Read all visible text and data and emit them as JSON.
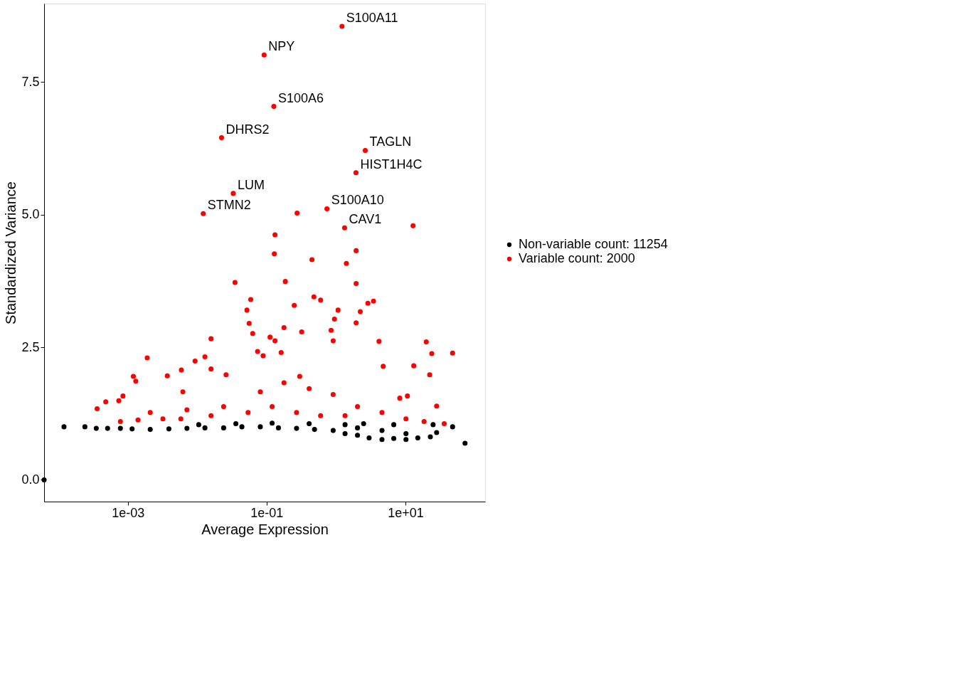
{
  "chart_data": {
    "type": "scatter",
    "xlabel": "Average Expression",
    "ylabel": "Standardized Variance",
    "log": "x",
    "grid": false,
    "legend": "right",
    "marker": "circle",
    "xlim": [
      6.2e-05,
      141
    ],
    "ylim": [
      -0.41,
      8.98
    ],
    "xticks": [
      {
        "value": 0.001,
        "label": "1e-03"
      },
      {
        "value": 0.1,
        "label": "1e-01"
      },
      {
        "value": 10,
        "label": "1e+01"
      }
    ],
    "yticks": [
      {
        "value": 0,
        "label": "0.0"
      },
      2.5,
      {
        "value": 5,
        "label": "5.0"
      },
      7.5
    ],
    "series": [
      {
        "name": "Non-variable count: 11254",
        "color": "#000000",
        "x": [
          6.2e-05,
          0.00012,
          0.00024,
          0.00035,
          0.00051,
          0.00078,
          0.00115,
          0.0021,
          0.0039,
          0.0071,
          0.0129,
          0.024,
          0.044,
          0.081,
          0.148,
          0.27,
          0.49,
          0.91,
          1.35,
          2.04,
          3.0,
          4.6,
          6.8,
          10.2,
          15.1,
          22.9,
          28.2,
          25.1,
          6.8,
          2.5,
          1.35,
          0.41,
          0.12,
          0.036,
          0.0105,
          47.9,
          72.4,
          4.6,
          10.2,
          2.04
        ],
        "values": [
          0,
          1.0,
          1.0,
          0.97,
          0.97,
          0.97,
          0.96,
          0.95,
          0.96,
          0.97,
          0.98,
          0.98,
          1.0,
          1.0,
          0.98,
          0.97,
          0.95,
          0.93,
          0.87,
          0.84,
          0.79,
          0.76,
          0.78,
          0.76,
          0.79,
          0.81,
          0.89,
          1.04,
          1.04,
          1.06,
          1.04,
          1.06,
          1.07,
          1.06,
          1.04,
          1.0,
          0.69,
          0.93,
          0.87,
          0.98
        ]
      },
      {
        "name": "Variable count: 2000",
        "color": "#ff0000",
        "x": [
          1.22,
          0.092,
          0.127,
          0.0224,
          2.64,
          1.94,
          0.033,
          0.74,
          0.0122,
          1.33,
          0.275,
          0.00036,
          0.00048,
          0.00074,
          0.00085,
          0.0012,
          0.0013,
          0.0019,
          0.0037,
          0.0059,
          0.0093,
          0.0129,
          0.0158,
          0.0158,
          0.026,
          0.035,
          0.052,
          0.059,
          0.056,
          0.063,
          0.074,
          0.112,
          0.132,
          0.132,
          0.129,
          0.186,
          0.178,
          0.25,
          0.32,
          0.45,
          0.48,
          0.6,
          0.95,
          1.07,
          0.85,
          0.91,
          1.41,
          1.95,
          1.95,
          1.95,
          2.24,
          2.88,
          3.47,
          4.17,
          4.79,
          12.9,
          20,
          24,
          22.4,
          13.2,
          47.9,
          28.2,
          10.7,
          8.3,
          0.3,
          0.162,
          0.089,
          0.0062,
          0.0021,
          0.0032,
          0.0071,
          0.024,
          0.081,
          0.178,
          0.41,
          0.91,
          2.04,
          4.6,
          10.2,
          18.6,
          36.3,
          0.054,
          0.12,
          0.27,
          0.6,
          1.35,
          0.00078,
          0.0014,
          0.0058,
          0.0158
        ],
        "values": [
          8.55,
          8.01,
          7.04,
          6.45,
          6.21,
          5.79,
          5.4,
          5.11,
          5.02,
          4.75,
          5.03,
          1.34,
          1.47,
          1.49,
          1.58,
          1.95,
          1.86,
          2.3,
          1.96,
          2.07,
          2.24,
          2.32,
          2.66,
          2.09,
          1.98,
          3.72,
          3.2,
          3.4,
          2.95,
          2.76,
          2.42,
          2.69,
          2.62,
          4.62,
          4.26,
          3.74,
          2.87,
          3.29,
          2.79,
          4.15,
          3.45,
          3.39,
          3.03,
          3.2,
          2.82,
          2.62,
          4.08,
          4.32,
          3.7,
          2.96,
          3.17,
          3.33,
          3.37,
          2.61,
          2.14,
          4.79,
          2.6,
          2.38,
          1.98,
          2.15,
          2.39,
          1.39,
          1.58,
          1.54,
          1.95,
          2.4,
          2.34,
          1.66,
          1.27,
          1.15,
          1.32,
          1.38,
          1.66,
          1.83,
          1.72,
          1.61,
          1.38,
          1.27,
          1.15,
          1.1,
          1.06,
          1.27,
          1.38,
          1.27,
          1.21,
          1.21,
          1.1,
          1.13,
          1.15,
          1.21
        ]
      }
    ],
    "annotations": [
      {
        "text": "S100A11",
        "x": 1.22,
        "y": 8.55
      },
      {
        "text": "NPY",
        "x": 0.092,
        "y": 8.01
      },
      {
        "text": "S100A6",
        "x": 0.127,
        "y": 7.04
      },
      {
        "text": "DHRS2",
        "x": 0.0224,
        "y": 6.45
      },
      {
        "text": "TAGLN",
        "x": 2.64,
        "y": 6.21
      },
      {
        "text": "HIST1H4C",
        "x": 1.94,
        "y": 5.79
      },
      {
        "text": "LUM",
        "x": 0.033,
        "y": 5.4
      },
      {
        "text": "S100A10",
        "x": 0.74,
        "y": 5.11
      },
      {
        "text": "STMN2",
        "x": 0.0122,
        "y": 5.02
      },
      {
        "text": "CAV1",
        "x": 1.33,
        "y": 4.75
      }
    ]
  }
}
